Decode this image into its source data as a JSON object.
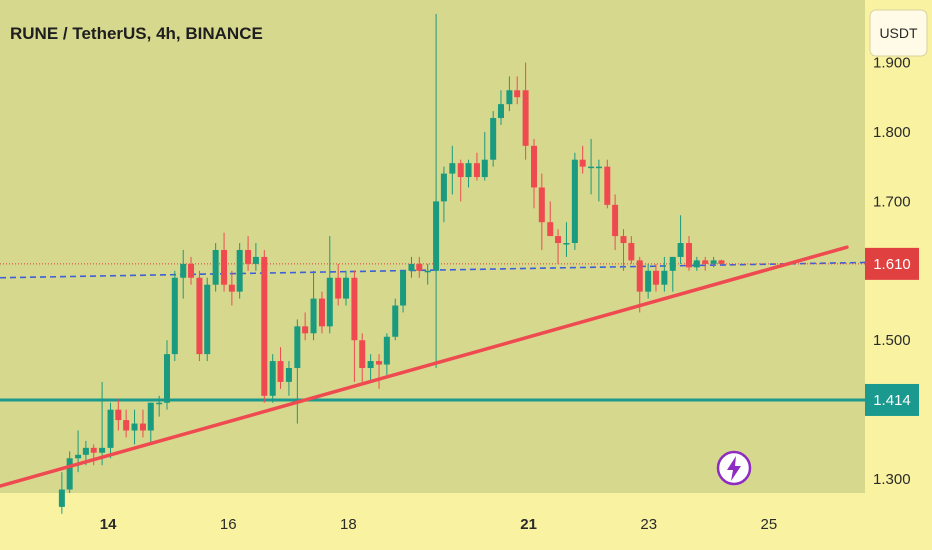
{
  "header": {
    "title": "RUNE / TetherUS, 4h, BINANCE"
  },
  "currency_button": {
    "label": "USDT"
  },
  "colors": {
    "plot_bg": "#d6d88e",
    "axis_bg": "#f9f3a1",
    "up": "#1a9a7e",
    "down": "#ef4a50",
    "trendline": "#ef4a50",
    "support": "#1a9a8e",
    "dashed_line": "#3d5fd9",
    "price_line": "#e04040",
    "lightning": "#8e2cc2"
  },
  "price_tags": {
    "current": "1.610",
    "support": "1.414"
  },
  "chart_data": {
    "type": "candlestick",
    "title": "RUNE / TetherUS, 4h, BINANCE",
    "ylim": [
      1.28,
      1.99
    ],
    "xlim": [
      12.2,
      26.6
    ],
    "y_ticks": [
      "1.900",
      "1.800",
      "1.700",
      "1.500",
      "1.300"
    ],
    "x_ticks": [
      {
        "value": 14,
        "label": "14",
        "bold": true
      },
      {
        "value": 16,
        "label": "16",
        "bold": false
      },
      {
        "value": 18,
        "label": "18",
        "bold": false
      },
      {
        "value": 21,
        "label": "21",
        "bold": true
      },
      {
        "value": 23,
        "label": "23",
        "bold": false
      },
      {
        "value": 25,
        "label": "25",
        "bold": false
      }
    ],
    "grid": false,
    "current_price": 1.61,
    "support_level": 1.414,
    "trendline": {
      "start": [
        12.2,
        1.29
      ],
      "end": [
        26.3,
        1.634
      ]
    },
    "dashed_line": {
      "start": [
        12.2,
        1.59
      ],
      "end": [
        26.6,
        1.612
      ]
    },
    "candles": [
      {
        "t": 13.23,
        "o": 1.26,
        "h": 1.31,
        "l": 1.25,
        "c": 1.285
      },
      {
        "t": 13.36,
        "o": 1.285,
        "h": 1.34,
        "l": 1.28,
        "c": 1.33
      },
      {
        "t": 13.5,
        "o": 1.33,
        "h": 1.37,
        "l": 1.31,
        "c": 1.335
      },
      {
        "t": 13.63,
        "o": 1.335,
        "h": 1.355,
        "l": 1.32,
        "c": 1.345
      },
      {
        "t": 13.76,
        "o": 1.345,
        "h": 1.35,
        "l": 1.32,
        "c": 1.338
      },
      {
        "t": 13.9,
        "o": 1.338,
        "h": 1.44,
        "l": 1.32,
        "c": 1.345
      },
      {
        "t": 14.04,
        "o": 1.345,
        "h": 1.41,
        "l": 1.33,
        "c": 1.4
      },
      {
        "t": 14.17,
        "o": 1.4,
        "h": 1.415,
        "l": 1.37,
        "c": 1.385
      },
      {
        "t": 14.3,
        "o": 1.385,
        "h": 1.4,
        "l": 1.36,
        "c": 1.37
      },
      {
        "t": 14.44,
        "o": 1.37,
        "h": 1.4,
        "l": 1.35,
        "c": 1.38
      },
      {
        "t": 14.58,
        "o": 1.38,
        "h": 1.4,
        "l": 1.36,
        "c": 1.37
      },
      {
        "t": 14.71,
        "o": 1.37,
        "h": 1.41,
        "l": 1.35,
        "c": 1.41
      },
      {
        "t": 14.85,
        "o": 1.41,
        "h": 1.42,
        "l": 1.39,
        "c": 1.41
      },
      {
        "t": 14.98,
        "o": 1.41,
        "h": 1.5,
        "l": 1.4,
        "c": 1.48
      },
      {
        "t": 15.11,
        "o": 1.48,
        "h": 1.6,
        "l": 1.47,
        "c": 1.59
      },
      {
        "t": 15.25,
        "o": 1.59,
        "h": 1.63,
        "l": 1.56,
        "c": 1.61
      },
      {
        "t": 15.38,
        "o": 1.61,
        "h": 1.62,
        "l": 1.58,
        "c": 1.59
      },
      {
        "t": 15.52,
        "o": 1.59,
        "h": 1.6,
        "l": 1.47,
        "c": 1.48
      },
      {
        "t": 15.65,
        "o": 1.48,
        "h": 1.59,
        "l": 1.47,
        "c": 1.58
      },
      {
        "t": 15.79,
        "o": 1.58,
        "h": 1.64,
        "l": 1.57,
        "c": 1.63
      },
      {
        "t": 15.93,
        "o": 1.63,
        "h": 1.655,
        "l": 1.57,
        "c": 1.58
      },
      {
        "t": 16.06,
        "o": 1.58,
        "h": 1.6,
        "l": 1.55,
        "c": 1.57
      },
      {
        "t": 16.19,
        "o": 1.57,
        "h": 1.64,
        "l": 1.56,
        "c": 1.63
      },
      {
        "t": 16.33,
        "o": 1.63,
        "h": 1.65,
        "l": 1.6,
        "c": 1.61
      },
      {
        "t": 16.46,
        "o": 1.61,
        "h": 1.64,
        "l": 1.6,
        "c": 1.62
      },
      {
        "t": 16.6,
        "o": 1.62,
        "h": 1.63,
        "l": 1.41,
        "c": 1.42
      },
      {
        "t": 16.74,
        "o": 1.42,
        "h": 1.48,
        "l": 1.41,
        "c": 1.47
      },
      {
        "t": 16.87,
        "o": 1.47,
        "h": 1.49,
        "l": 1.43,
        "c": 1.44
      },
      {
        "t": 17.01,
        "o": 1.44,
        "h": 1.47,
        "l": 1.42,
        "c": 1.46
      },
      {
        "t": 17.15,
        "o": 1.46,
        "h": 1.53,
        "l": 1.38,
        "c": 1.52
      },
      {
        "t": 17.28,
        "o": 1.52,
        "h": 1.54,
        "l": 1.5,
        "c": 1.51
      },
      {
        "t": 17.42,
        "o": 1.51,
        "h": 1.6,
        "l": 1.5,
        "c": 1.56
      },
      {
        "t": 17.56,
        "o": 1.56,
        "h": 1.57,
        "l": 1.51,
        "c": 1.52
      },
      {
        "t": 17.69,
        "o": 1.52,
        "h": 1.65,
        "l": 1.51,
        "c": 1.59
      },
      {
        "t": 17.83,
        "o": 1.59,
        "h": 1.61,
        "l": 1.55,
        "c": 1.56
      },
      {
        "t": 17.96,
        "o": 1.56,
        "h": 1.6,
        "l": 1.55,
        "c": 1.59
      },
      {
        "t": 18.1,
        "o": 1.59,
        "h": 1.6,
        "l": 1.44,
        "c": 1.5
      },
      {
        "t": 18.23,
        "o": 1.5,
        "h": 1.51,
        "l": 1.44,
        "c": 1.46
      },
      {
        "t": 18.37,
        "o": 1.46,
        "h": 1.48,
        "l": 1.44,
        "c": 1.47
      },
      {
        "t": 18.51,
        "o": 1.47,
        "h": 1.48,
        "l": 1.43,
        "c": 1.465
      },
      {
        "t": 18.64,
        "o": 1.465,
        "h": 1.51,
        "l": 1.45,
        "c": 1.505
      },
      {
        "t": 18.78,
        "o": 1.505,
        "h": 1.56,
        "l": 1.5,
        "c": 1.55
      },
      {
        "t": 18.91,
        "o": 1.55,
        "h": 1.6,
        "l": 1.54,
        "c": 1.6
      },
      {
        "t": 19.05,
        "o": 1.6,
        "h": 1.62,
        "l": 1.59,
        "c": 1.61
      },
      {
        "t": 19.18,
        "o": 1.61,
        "h": 1.62,
        "l": 1.59,
        "c": 1.6
      },
      {
        "t": 19.32,
        "o": 1.6,
        "h": 1.61,
        "l": 1.58,
        "c": 1.6
      },
      {
        "t": 19.46,
        "o": 1.6,
        "h": 1.97,
        "l": 1.46,
        "c": 1.7
      },
      {
        "t": 19.59,
        "o": 1.7,
        "h": 1.75,
        "l": 1.67,
        "c": 1.74
      },
      {
        "t": 19.73,
        "o": 1.74,
        "h": 1.78,
        "l": 1.71,
        "c": 1.755
      },
      {
        "t": 19.87,
        "o": 1.755,
        "h": 1.76,
        "l": 1.7,
        "c": 1.735
      },
      {
        "t": 20.0,
        "o": 1.735,
        "h": 1.76,
        "l": 1.72,
        "c": 1.755
      },
      {
        "t": 20.14,
        "o": 1.755,
        "h": 1.77,
        "l": 1.73,
        "c": 1.735
      },
      {
        "t": 20.27,
        "o": 1.735,
        "h": 1.8,
        "l": 1.73,
        "c": 1.76
      },
      {
        "t": 20.41,
        "o": 1.76,
        "h": 1.83,
        "l": 1.75,
        "c": 1.82
      },
      {
        "t": 20.54,
        "o": 1.82,
        "h": 1.86,
        "l": 1.81,
        "c": 1.84
      },
      {
        "t": 20.68,
        "o": 1.84,
        "h": 1.88,
        "l": 1.83,
        "c": 1.86
      },
      {
        "t": 20.81,
        "o": 1.86,
        "h": 1.88,
        "l": 1.84,
        "c": 1.85
      },
      {
        "t": 20.95,
        "o": 1.86,
        "h": 1.9,
        "l": 1.76,
        "c": 1.78
      },
      {
        "t": 21.09,
        "o": 1.78,
        "h": 1.79,
        "l": 1.69,
        "c": 1.72
      },
      {
        "t": 21.22,
        "o": 1.72,
        "h": 1.74,
        "l": 1.63,
        "c": 1.67
      },
      {
        "t": 21.36,
        "o": 1.67,
        "h": 1.7,
        "l": 1.65,
        "c": 1.65
      },
      {
        "t": 21.49,
        "o": 1.65,
        "h": 1.66,
        "l": 1.61,
        "c": 1.64
      },
      {
        "t": 21.63,
        "o": 1.64,
        "h": 1.67,
        "l": 1.62,
        "c": 1.64
      },
      {
        "t": 21.77,
        "o": 1.64,
        "h": 1.77,
        "l": 1.63,
        "c": 1.76
      },
      {
        "t": 21.9,
        "o": 1.76,
        "h": 1.78,
        "l": 1.74,
        "c": 1.75
      },
      {
        "t": 22.04,
        "o": 1.75,
        "h": 1.79,
        "l": 1.71,
        "c": 1.75
      },
      {
        "t": 22.17,
        "o": 1.75,
        "h": 1.76,
        "l": 1.7,
        "c": 1.75
      },
      {
        "t": 22.31,
        "o": 1.75,
        "h": 1.76,
        "l": 1.69,
        "c": 1.695
      },
      {
        "t": 22.44,
        "o": 1.695,
        "h": 1.71,
        "l": 1.63,
        "c": 1.65
      },
      {
        "t": 22.58,
        "o": 1.65,
        "h": 1.66,
        "l": 1.6,
        "c": 1.64
      },
      {
        "t": 22.71,
        "o": 1.64,
        "h": 1.65,
        "l": 1.61,
        "c": 1.615
      },
      {
        "t": 22.85,
        "o": 1.615,
        "h": 1.62,
        "l": 1.54,
        "c": 1.57
      },
      {
        "t": 22.99,
        "o": 1.57,
        "h": 1.61,
        "l": 1.56,
        "c": 1.6
      },
      {
        "t": 23.12,
        "o": 1.6,
        "h": 1.61,
        "l": 1.57,
        "c": 1.58
      },
      {
        "t": 23.26,
        "o": 1.58,
        "h": 1.62,
        "l": 1.57,
        "c": 1.6
      },
      {
        "t": 23.4,
        "o": 1.6,
        "h": 1.62,
        "l": 1.57,
        "c": 1.62
      },
      {
        "t": 23.53,
        "o": 1.62,
        "h": 1.68,
        "l": 1.61,
        "c": 1.64
      },
      {
        "t": 23.67,
        "o": 1.64,
        "h": 1.65,
        "l": 1.6,
        "c": 1.605
      },
      {
        "t": 23.8,
        "o": 1.605,
        "h": 1.62,
        "l": 1.6,
        "c": 1.615
      },
      {
        "t": 23.94,
        "o": 1.615,
        "h": 1.62,
        "l": 1.6,
        "c": 1.61
      },
      {
        "t": 24.08,
        "o": 1.61,
        "h": 1.62,
        "l": 1.605,
        "c": 1.615
      },
      {
        "t": 24.21,
        "o": 1.615,
        "h": 1.616,
        "l": 1.608,
        "c": 1.61
      }
    ]
  }
}
